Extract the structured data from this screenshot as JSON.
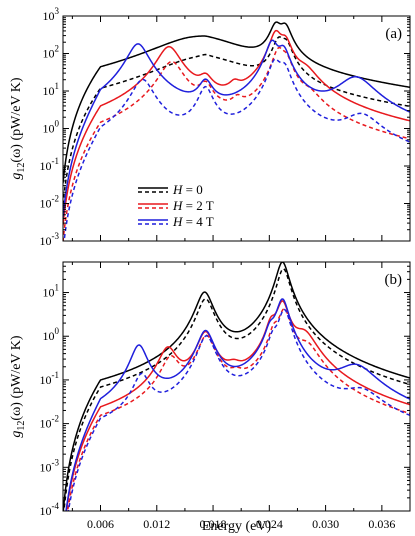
{
  "chart_data": [
    {
      "panel": "(a)",
      "type": "line",
      "ylabel_base": "g",
      "ylabel_sub": "12",
      "ylabel_rest": "(ω) (pW/eV K)",
      "yscale": "log",
      "ylim": [
        0.001,
        1000
      ],
      "xlim": [
        0.002,
        0.039
      ],
      "ytick_exponents": [
        -3,
        -2,
        -1,
        0,
        1,
        2,
        3
      ],
      "grid": false,
      "legend": {
        "placement": "lower-left",
        "entries": [
          {
            "prefix": "H",
            "rest": " = 0",
            "color": "#000000"
          },
          {
            "prefix": "H",
            "rest": " = 2 T",
            "color": "#e8191e"
          },
          {
            "prefix": "H",
            "rest": " = 4 T",
            "color": "#1f1fdc"
          }
        ]
      },
      "series": [
        {
          "color": "#000000",
          "dash": false,
          "peaks": [
            [
              0.0165,
              280,
              0.0045
            ],
            [
              0.0172,
              12,
              0.0006
            ],
            [
              0.0247,
              500,
              0.0006
            ],
            [
              0.0257,
              450,
              0.0006
            ]
          ],
          "base": 0.002
        },
        {
          "color": "#000000",
          "dash": true,
          "peaks": [
            [
              0.017,
              80,
              0.0045
            ],
            [
              0.0172,
              12,
              0.0006
            ],
            [
              0.025,
              200,
              0.0006
            ],
            [
              0.0258,
              150,
              0.0006
            ]
          ],
          "base": 0.0006
        },
        {
          "color": "#e8191e",
          "dash": false,
          "peaks": [
            [
              0.0133,
              150,
              0.0011
            ],
            [
              0.0172,
              15,
              0.0007
            ],
            [
              0.0203,
              7,
              0.0006
            ],
            [
              0.0247,
              350,
              0.0006
            ],
            [
              0.0257,
              200,
              0.0006
            ],
            [
              0.0278,
              25,
              0.0012
            ]
          ],
          "base": 0.002
        },
        {
          "color": "#e8191e",
          "dash": true,
          "peaks": [
            [
              0.0136,
              60,
              0.0011
            ],
            [
              0.0172,
              12,
              0.0007
            ],
            [
              0.0206,
              3,
              0.0006
            ],
            [
              0.025,
              120,
              0.0006
            ],
            [
              0.0258,
              60,
              0.0006
            ],
            [
              0.0282,
              5,
              0.0012
            ]
          ],
          "base": 0.0006
        },
        {
          "color": "#1f1fdc",
          "dash": false,
          "peaks": [
            [
              0.01,
              180,
              0.001
            ],
            [
              0.0172,
              15,
              0.0007
            ],
            [
              0.0243,
              200,
              0.0006
            ],
            [
              0.0255,
              120,
              0.0006
            ],
            [
              0.0332,
              22,
              0.0018
            ]
          ],
          "base": 0.002
        },
        {
          "color": "#1f1fdc",
          "dash": true,
          "peaks": [
            [
              0.0105,
              20,
              0.001
            ],
            [
              0.0172,
              12,
              0.0007
            ],
            [
              0.0246,
              60,
              0.0006
            ],
            [
              0.0256,
              40,
              0.0006
            ],
            [
              0.0338,
              2,
              0.0018
            ]
          ],
          "base": 0.0006
        }
      ]
    },
    {
      "panel": "(b)",
      "type": "line",
      "xlabel": "Energy (eV)",
      "ylabel_base": "g",
      "ylabel_sub": "12",
      "ylabel_rest": "(ω) (pW/eV K)",
      "yscale": "log",
      "ylim": [
        0.0001,
        50
      ],
      "xlim": [
        0.002,
        0.039
      ],
      "ytick_exponents": [
        -4,
        -3,
        -2,
        -1,
        0,
        1
      ],
      "xticks": [
        "0.006",
        "0.012",
        "0.018",
        "0.024",
        "0.030",
        "0.036"
      ],
      "grid": false,
      "series": [
        {
          "color": "#000000",
          "dash": false,
          "peaks": [
            [
              0.0171,
              10,
              0.0008
            ],
            [
              0.0254,
              50,
              0.0006
            ]
          ],
          "base": 0.0002
        },
        {
          "color": "#000000",
          "dash": true,
          "peaks": [
            [
              0.0172,
              7,
              0.0008
            ],
            [
              0.0255,
              35,
              0.0006
            ]
          ],
          "base": 0.0001
        },
        {
          "color": "#e8191e",
          "dash": false,
          "peaks": [
            [
              0.0132,
              0.5,
              0.0009
            ],
            [
              0.0172,
              1.2,
              0.0008
            ],
            [
              0.0202,
              0.08,
              0.0008
            ],
            [
              0.0242,
              1.5,
              0.0005
            ],
            [
              0.0254,
              6,
              0.0006
            ],
            [
              0.0277,
              1.0,
              0.0012
            ]
          ],
          "base": 0.0002
        },
        {
          "color": "#e8191e",
          "dash": true,
          "peaks": [
            [
              0.0135,
              0.3,
              0.0009
            ],
            [
              0.0173,
              1.0,
              0.0008
            ],
            [
              0.0205,
              0.05,
              0.0008
            ],
            [
              0.0245,
              1.0,
              0.0005
            ],
            [
              0.0256,
              4,
              0.0006
            ],
            [
              0.028,
              0.5,
              0.0012
            ]
          ],
          "base": 0.0001
        },
        {
          "color": "#1f1fdc",
          "dash": false,
          "peaks": [
            [
              0.0101,
              0.6,
              0.0008
            ],
            [
              0.0172,
              1.3,
              0.0008
            ],
            [
              0.0241,
              1.0,
              0.0005
            ],
            [
              0.0254,
              7,
              0.0006
            ],
            [
              0.0332,
              0.18,
              0.002
            ]
          ],
          "base": 0.0002
        },
        {
          "color": "#1f1fdc",
          "dash": true,
          "peaks": [
            [
              0.0104,
              0.12,
              0.0008
            ],
            [
              0.0173,
              1.0,
              0.0008
            ],
            [
              0.0244,
              0.6,
              0.0005
            ],
            [
              0.0256,
              4,
              0.0006
            ],
            [
              0.0338,
              0.04,
              0.002
            ]
          ],
          "base": 0.0001
        }
      ]
    }
  ]
}
